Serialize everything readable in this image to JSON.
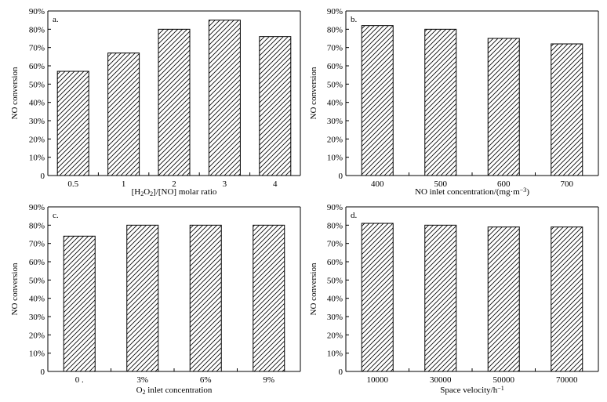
{
  "chart_data": [
    {
      "type": "bar",
      "panel": "a.",
      "categories": [
        "0.5",
        "1",
        "2",
        "3",
        "4"
      ],
      "values": [
        57,
        67,
        80,
        85,
        76
      ],
      "xlabel": "[H2O2]/[NO] molar ratio",
      "xlabel_parts": [
        {
          "t": "[H"
        },
        {
          "t": "2",
          "sub": true
        },
        {
          "t": "O"
        },
        {
          "t": "2",
          "sub": true
        },
        {
          "t": "]/[NO] molar ratio"
        }
      ],
      "ylabel": "NO conversion",
      "ylim": [
        0,
        90
      ],
      "yticks": [
        "0",
        "10%",
        "20%",
        "30%",
        "40%",
        "50%",
        "60%",
        "70%",
        "80%",
        "90%"
      ],
      "bar_fill": "diagonal-hatch",
      "grid": false
    },
    {
      "type": "bar",
      "panel": "b.",
      "categories": [
        "400",
        "500",
        "600",
        "700"
      ],
      "values": [
        82,
        80,
        75,
        72
      ],
      "xlabel": "NO inlet concentration/(mg·m−3)",
      "xlabel_parts": [
        {
          "t": "NO inlet concentration/(mg·m"
        },
        {
          "t": "−3",
          "sup": true
        },
        {
          "t": ")"
        }
      ],
      "ylabel": "NO conversion",
      "ylim": [
        0,
        90
      ],
      "yticks": [
        "0",
        "10%",
        "20%",
        "30%",
        "40%",
        "50%",
        "60%",
        "70%",
        "80%",
        "90%"
      ],
      "bar_fill": "diagonal-hatch",
      "grid": false
    },
    {
      "type": "bar",
      "panel": "c.",
      "categories": [
        "0 .",
        "3%",
        "6%",
        "9%"
      ],
      "values": [
        74,
        80,
        80,
        80
      ],
      "xlabel": "O2 inlet concentration",
      "xlabel_parts": [
        {
          "t": "O"
        },
        {
          "t": "2",
          "sub": true
        },
        {
          "t": " inlet concentration"
        }
      ],
      "ylabel": "NO conversion",
      "ylim": [
        0,
        90
      ],
      "yticks": [
        "0",
        "10%",
        "20%",
        "30%",
        "40%",
        "50%",
        "60%",
        "70%",
        "80%",
        "90%"
      ],
      "bar_fill": "diagonal-hatch",
      "grid": false
    },
    {
      "type": "bar",
      "panel": "d.",
      "categories": [
        "10000",
        "30000",
        "50000",
        "70000"
      ],
      "values": [
        81,
        80,
        79,
        79
      ],
      "xlabel": "Space velocity/h−1",
      "xlabel_parts": [
        {
          "t": "Space velocity/h"
        },
        {
          "t": "−1",
          "sup": true
        }
      ],
      "ylabel": "NO conversion",
      "ylim": [
        0,
        90
      ],
      "yticks": [
        "0",
        "10%",
        "20%",
        "30%",
        "40%",
        "50%",
        "60%",
        "70%",
        "80%",
        "90%"
      ],
      "bar_fill": "diagonal-hatch",
      "grid": false
    }
  ]
}
